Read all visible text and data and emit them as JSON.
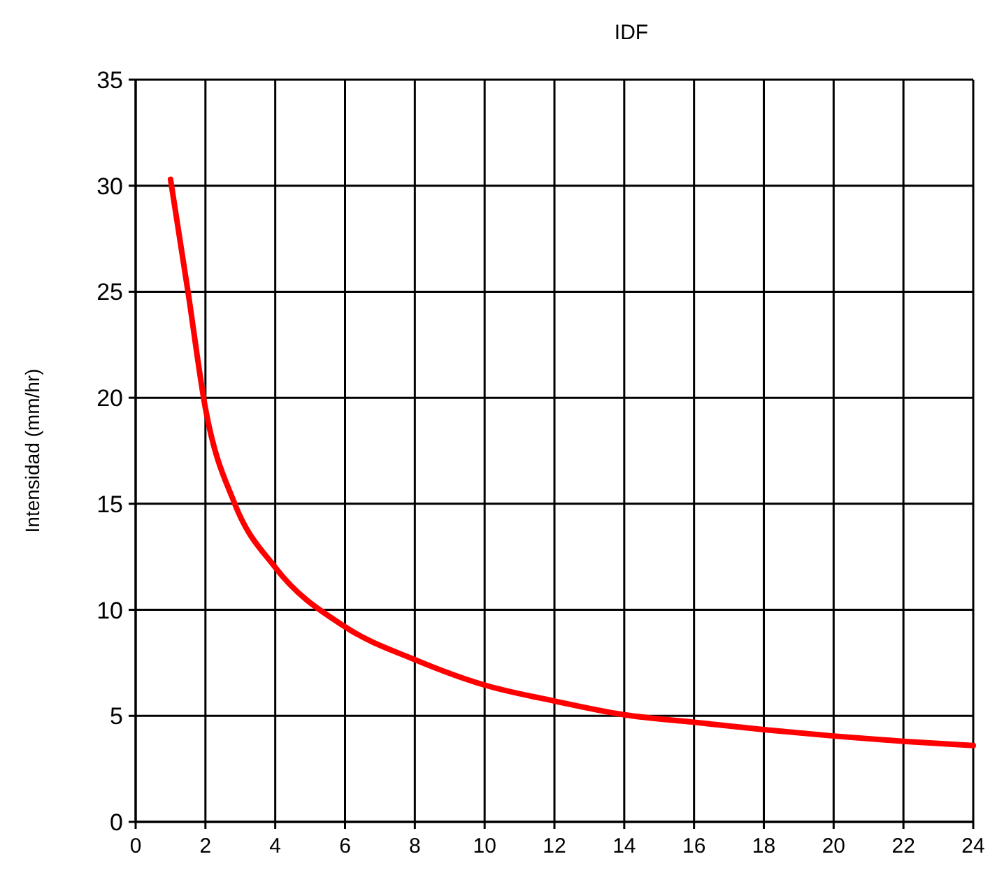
{
  "chart_data": {
    "type": "line",
    "title": "IDF",
    "ylabel": "Intensidad (mm/hr)",
    "x": [
      1,
      1.5,
      2,
      2.84,
      4,
      6,
      8,
      10,
      12,
      14,
      16,
      18,
      20,
      22,
      24
    ],
    "series": [
      {
        "color": "#ff0000",
        "values": [
          30.3,
          25,
          19.5,
          15,
          12,
          9.2,
          7.65,
          6.45,
          5.7,
          5.05,
          4.7,
          4.35,
          4.05,
          3.8,
          3.6
        ]
      }
    ],
    "xlim": [
      0,
      24
    ],
    "xticks": [
      0,
      2,
      4,
      6,
      8,
      10,
      12,
      14,
      16,
      18,
      20,
      22,
      24
    ],
    "ylim": [
      0,
      35
    ],
    "yticks": [
      0,
      5,
      10,
      15,
      20,
      25,
      30,
      35
    ],
    "grid": true,
    "marker": "none",
    "line_style": "solid"
  }
}
